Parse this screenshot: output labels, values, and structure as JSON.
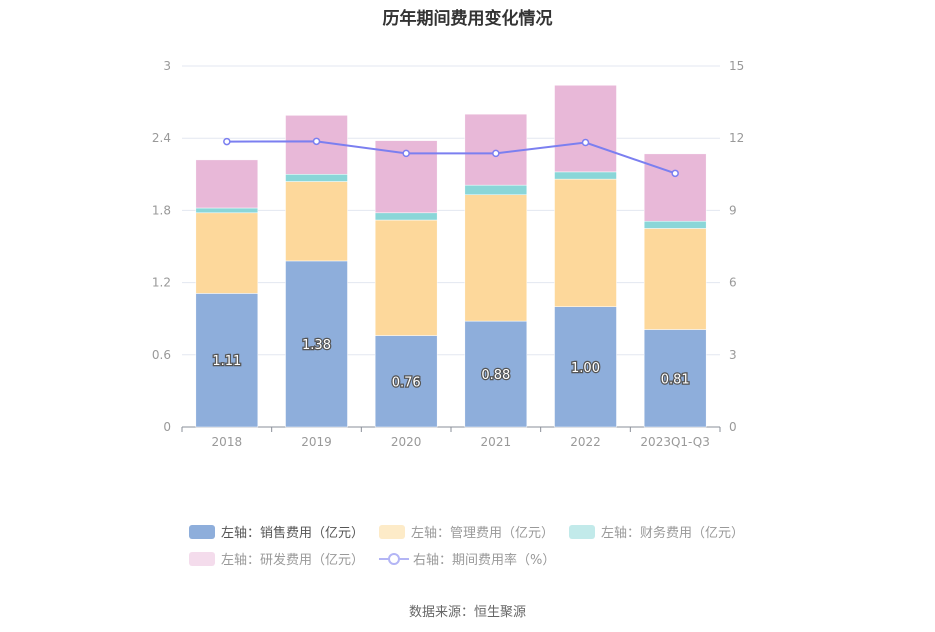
{
  "chart_data": {
    "type": "bar",
    "stacked": true,
    "title": "历年期间费用变化情况",
    "categories": [
      "2018",
      "2019",
      "2020",
      "2021",
      "2022",
      "2023Q1-Q3"
    ],
    "left_axis": {
      "ylim": [
        0,
        3
      ],
      "ticks": [
        "0",
        "0.6",
        "1.2",
        "1.8",
        "2.4",
        "3"
      ]
    },
    "right_axis": {
      "ylim": [
        0,
        15
      ],
      "ticks": [
        "0",
        "3",
        "6",
        "9",
        "12",
        "15"
      ]
    },
    "series": [
      {
        "name": "左轴：销售费用（亿元）",
        "axis": "left",
        "color": "#8eaedb",
        "values": [
          1.11,
          1.38,
          0.76,
          0.88,
          1.0,
          0.81
        ],
        "labels": [
          "1.11",
          "1.38",
          "0.76",
          "0.88",
          "1.00",
          "0.81"
        ]
      },
      {
        "name": "左轴：管理费用（亿元）",
        "axis": "left",
        "color": "#fdd89b",
        "values": [
          0.67,
          0.66,
          0.96,
          1.05,
          1.06,
          0.84
        ]
      },
      {
        "name": "左轴：财务费用（亿元）",
        "axis": "left",
        "color": "#8ad6d8",
        "values": [
          0.04,
          0.06,
          0.06,
          0.08,
          0.06,
          0.06
        ]
      },
      {
        "name": "左轴：研发费用（亿元）",
        "axis": "left",
        "color": "#e8b8d8",
        "values": [
          0.4,
          0.49,
          0.6,
          0.59,
          0.72,
          0.56
        ]
      },
      {
        "name": "右轴：期间费用率（%）",
        "axis": "right",
        "type": "line",
        "color": "#7b7ff0",
        "values": [
          11.86,
          11.87,
          11.37,
          11.37,
          11.82,
          10.54
        ]
      }
    ],
    "grid": true,
    "legend_position": "bottom"
  },
  "source": "数据来源：恒生聚源"
}
